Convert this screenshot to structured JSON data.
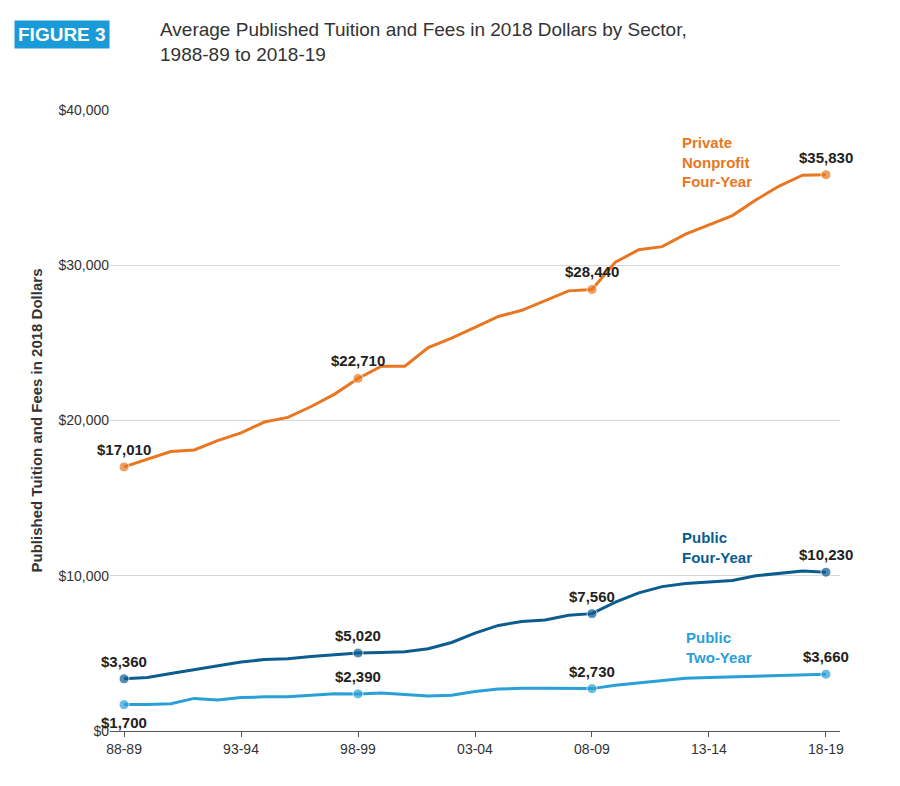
{
  "chart_data": {
    "type": "line",
    "annotations": [
      "FIGURE 3"
    ],
    "title": "Average Published Tuition and Fees in 2018 Dollars by Sector, 1988-89 to 2018-19",
    "y_label": "Published Tuition and Fees in 2018 Dollars",
    "categories": [
      "88-89",
      null,
      null,
      null,
      null,
      "93-94",
      null,
      null,
      null,
      null,
      "98-99",
      null,
      null,
      null,
      null,
      "03-04",
      null,
      null,
      null,
      null,
      "08-09",
      null,
      null,
      null,
      null,
      "13-14",
      null,
      null,
      null,
      null,
      "18-19"
    ],
    "series": [
      {
        "name": "Private Nonprofit Four-Year",
        "color": "#e87722",
        "marker": "circle",
        "line_style": "solid",
        "values": [
          17010,
          17500,
          18000,
          18100,
          18700,
          19200,
          19900,
          20200,
          20900,
          21700,
          22710,
          23500,
          23500,
          24700,
          25300,
          26000,
          26700,
          27100,
          27700,
          28350,
          28440,
          30200,
          31000,
          31200,
          32000,
          32600,
          33200,
          34200,
          35100,
          35800,
          35830
        ],
        "value_labels": [
          "$17,010",
          null,
          null,
          null,
          null,
          null,
          null,
          null,
          null,
          null,
          "$22,710",
          null,
          null,
          null,
          null,
          null,
          null,
          null,
          null,
          null,
          "$28,440",
          null,
          null,
          null,
          null,
          null,
          null,
          null,
          null,
          null,
          "$35,830"
        ]
      },
      {
        "name": "Public Four-Year",
        "color": "#0b5c8f",
        "marker": "circle",
        "line_style": "solid",
        "values": [
          3360,
          3450,
          3700,
          3950,
          4200,
          4450,
          4600,
          4650,
          4800,
          4900,
          5020,
          5050,
          5100,
          5300,
          5700,
          6300,
          6800,
          7050,
          7150,
          7450,
          7560,
          8300,
          8900,
          9300,
          9500,
          9600,
          9700,
          10000,
          10150,
          10300,
          10230
        ],
        "value_labels": [
          "$3,360",
          null,
          null,
          null,
          null,
          null,
          null,
          null,
          null,
          null,
          "$5,020",
          null,
          null,
          null,
          null,
          null,
          null,
          null,
          null,
          null,
          "$7,560",
          null,
          null,
          null,
          null,
          null,
          null,
          null,
          null,
          null,
          "$10,230"
        ]
      },
      {
        "name": "Public Two-Year",
        "color": "#2a9fd8",
        "marker": "circle",
        "line_style": "solid",
        "values": [
          1700,
          1700,
          1750,
          2100,
          2000,
          2150,
          2200,
          2200,
          2300,
          2400,
          2390,
          2450,
          2350,
          2250,
          2300,
          2550,
          2700,
          2750,
          2750,
          2750,
          2730,
          2950,
          3100,
          3250,
          3400,
          3450,
          3500,
          3550,
          3600,
          3650,
          3660
        ],
        "value_labels": [
          "$1,700",
          null,
          null,
          null,
          null,
          null,
          null,
          null,
          null,
          null,
          "$2,390",
          null,
          null,
          null,
          null,
          null,
          null,
          null,
          null,
          null,
          "$2,730",
          null,
          null,
          null,
          null,
          null,
          null,
          null,
          null,
          null,
          "$3,660"
        ]
      }
    ],
    "ylim": [
      0,
      40000
    ],
    "yticks": [
      {
        "value": 0,
        "label": "$0"
      },
      {
        "value": 10000,
        "label": "$10,000"
      },
      {
        "value": 20000,
        "label": "$20,000"
      },
      {
        "value": 30000,
        "label": "$30,000"
      },
      {
        "value": 40000,
        "label": "$40,000"
      }
    ],
    "grid": true,
    "data_labels": true
  }
}
